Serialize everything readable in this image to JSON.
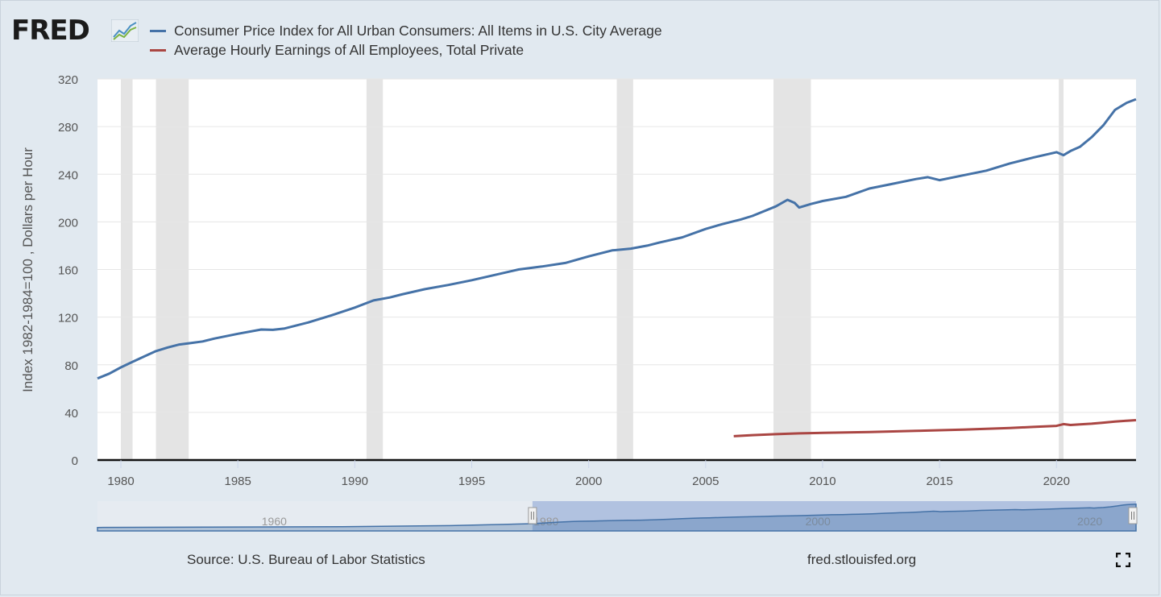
{
  "brand": {
    "logo_text": "FRED",
    "logo_icon": "fred-line-chart-icon"
  },
  "legend": [
    {
      "label": "Consumer Price Index for All Urban Consumers: All Items in U.S. City Average",
      "color": "#4572a7"
    },
    {
      "label": "Average Hourly Earnings of All Employees, Total Private",
      "color": "#aa4643"
    }
  ],
  "footer": {
    "source": "Source: U.S. Bureau of Labor Statistics",
    "url": "fred.stlouisfed.org",
    "fullscreen_icon": "fullscreen-icon"
  },
  "chart_data": {
    "type": "line",
    "title": "",
    "xlabel": "",
    "ylabel": "Index 1982-1984=100 , Dollars per Hour",
    "xlim": [
      1979.0,
      2023.4
    ],
    "ylim": [
      0,
      320
    ],
    "yticks": [
      0,
      40,
      80,
      120,
      160,
      200,
      240,
      280,
      320
    ],
    "xticks": [
      1980,
      1985,
      1990,
      1995,
      2000,
      2005,
      2010,
      2015,
      2020
    ],
    "grid": true,
    "legend_position": "top-left",
    "recessions": [
      [
        1980.0,
        1980.5
      ],
      [
        1981.5,
        1982.9
      ],
      [
        1990.5,
        1991.2
      ],
      [
        2001.2,
        2001.9
      ],
      [
        2007.9,
        2009.5
      ],
      [
        2020.1,
        2020.3
      ]
    ],
    "series": [
      {
        "name": "Consumer Price Index for All Urban Consumers: All Items in U.S. City Average",
        "color": "#4572a7",
        "x": [
          1979.0,
          1979.5,
          1980.0,
          1980.5,
          1981.0,
          1981.5,
          1982.0,
          1982.5,
          1983.0,
          1983.5,
          1984.0,
          1985.0,
          1986.0,
          1986.5,
          1987.0,
          1988.0,
          1989.0,
          1990.0,
          1990.8,
          1991.5,
          1992.0,
          1993.0,
          1994.0,
          1995.0,
          1996.0,
          1997.0,
          1998.0,
          1999.0,
          2000.0,
          2001.0,
          2001.8,
          2002.5,
          2003.0,
          2004.0,
          2005.0,
          2005.7,
          2006.0,
          2006.5,
          2007.0,
          2008.0,
          2008.5,
          2008.8,
          2009.0,
          2009.5,
          2010.0,
          2011.0,
          2012.0,
          2013.0,
          2014.0,
          2014.5,
          2015.0,
          2016.0,
          2017.0,
          2018.0,
          2019.0,
          2020.0,
          2020.3,
          2020.6,
          2021.0,
          2021.5,
          2022.0,
          2022.5,
          2023.0,
          2023.4
        ],
        "values": [
          68.5,
          72.5,
          77.8,
          82.5,
          87.0,
          91.5,
          94.5,
          97.0,
          98.2,
          99.6,
          102.0,
          106.0,
          109.6,
          109.3,
          110.5,
          115.5,
          121.5,
          128.0,
          134.0,
          136.5,
          139.0,
          143.5,
          147.0,
          151.0,
          155.5,
          160.0,
          162.5,
          165.5,
          171.0,
          176.0,
          177.5,
          180.0,
          182.5,
          187.0,
          194.0,
          198.0,
          199.5,
          202.0,
          205.0,
          213.0,
          218.5,
          216.0,
          212.0,
          215.0,
          217.5,
          221.0,
          228.0,
          232.0,
          236.0,
          237.5,
          235.0,
          239.0,
          243.0,
          249.0,
          254.0,
          258.5,
          256.0,
          259.5,
          263.0,
          271.0,
          281.0,
          294.0,
          300.0,
          303.0
        ]
      },
      {
        "name": "Average Hourly Earnings of All Employees, Total Private",
        "color": "#aa4643",
        "x": [
          2006.2,
          2007.0,
          2008.0,
          2009.0,
          2010.0,
          2011.0,
          2012.0,
          2013.0,
          2014.0,
          2015.0,
          2016.0,
          2017.0,
          2018.0,
          2019.0,
          2020.0,
          2020.3,
          2020.6,
          2021.0,
          2021.5,
          2022.0,
          2022.5,
          2023.0,
          2023.4
        ],
        "values": [
          20.0,
          20.9,
          21.7,
          22.4,
          22.8,
          23.2,
          23.5,
          24.0,
          24.5,
          25.0,
          25.6,
          26.2,
          26.9,
          27.8,
          28.7,
          30.2,
          29.4,
          29.9,
          30.5,
          31.4,
          32.3,
          33.0,
          33.5
        ]
      }
    ],
    "navigator": {
      "xticks": [
        1960,
        1980,
        2000,
        2020
      ],
      "range": [
        1947.0,
        2023.4
      ],
      "selected": [
        1979.0,
        2023.4
      ]
    }
  }
}
